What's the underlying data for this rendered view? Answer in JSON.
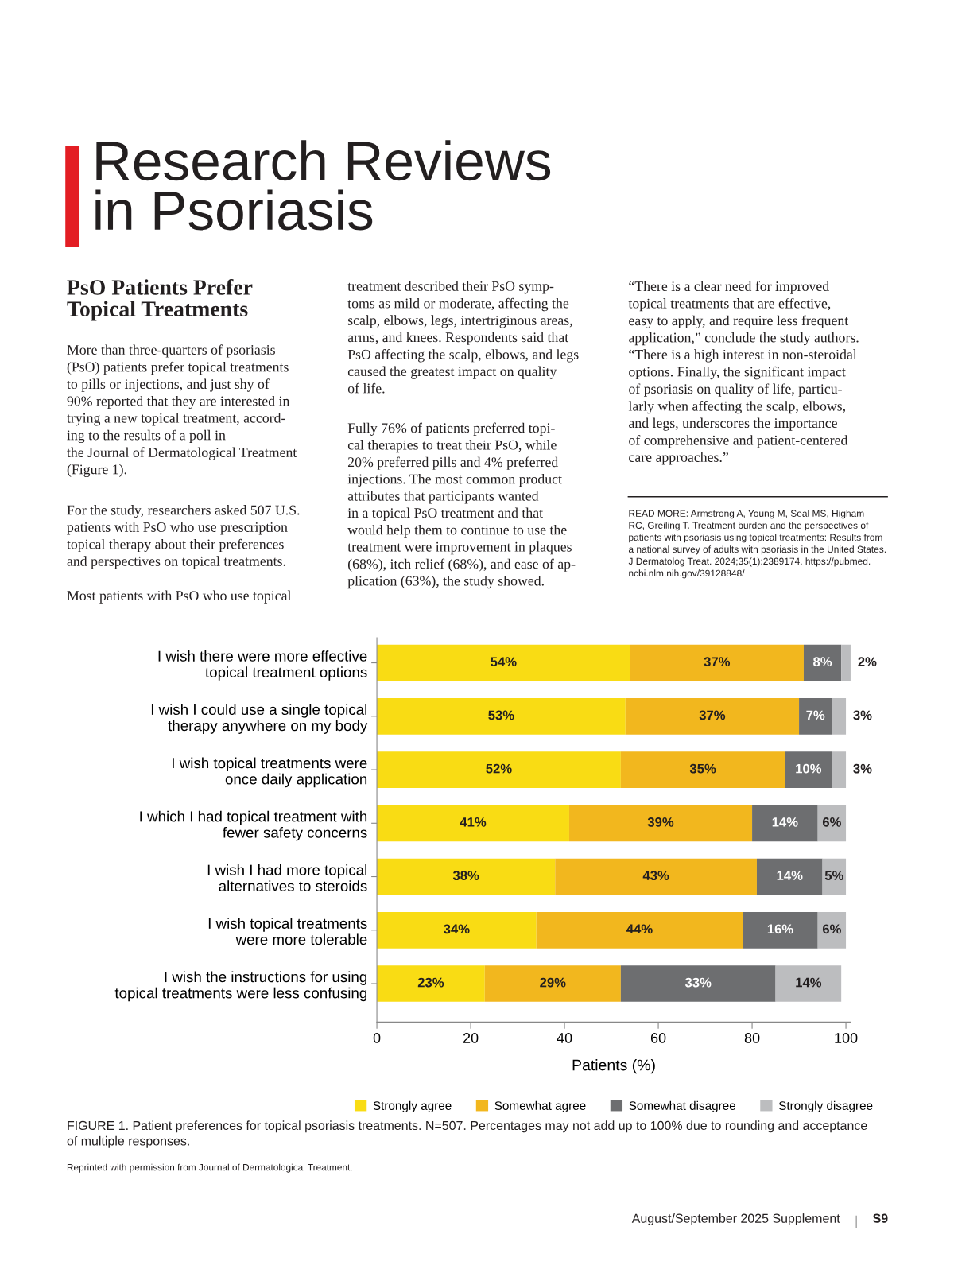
{
  "chart_data": {
    "type": "bar",
    "orientation": "horizontal",
    "stacked": true,
    "title": "Research Reviews\nin Psoriasis",
    "subtitle": "PsO Patients Prefer\nTopical Treatments",
    "categories": [
      "I wish there were more effective\ntopical treatment options",
      "I wish I could use a single topical\ntherapy anywhere on my body",
      "I wish topical treatments were\nonce daily application",
      "I which I had topical treatment with\nfewer safety concerns",
      "I wish I had more topical\nalternatives to steroids",
      "I wish topical treatments\nwere more tolerable",
      "I wish the instructions for using\ntopical treatments were less confusing"
    ],
    "series": [
      {
        "name": "Strongly agree",
        "color": "#f9dc14",
        "values": [
          54,
          53,
          52,
          41,
          38,
          34,
          23
        ],
        "value_labels": [
          "54%",
          "53%",
          "52%",
          "41%",
          "38%",
          "34%",
          "23%"
        ]
      },
      {
        "name": "Somewhat agree",
        "color": "#f2b71e",
        "values": [
          37,
          37,
          35,
          39,
          43,
          44,
          29
        ],
        "value_labels": [
          "37%",
          "37%",
          "35%",
          "39%",
          "43%",
          "44%",
          "29%"
        ]
      },
      {
        "name": "Somewhat disagree",
        "color": "#6d6e70",
        "values": [
          8,
          7,
          10,
          14,
          14,
          16,
          33
        ],
        "value_labels": [
          "8%",
          "7%",
          "10%",
          "14%",
          "14%",
          "16%",
          "33%"
        ]
      },
      {
        "name": "Strongly disagree",
        "color": "#bcbdbf",
        "values": [
          2,
          3,
          3,
          6,
          5,
          6,
          14
        ],
        "value_labels": [
          "2%",
          "3%",
          "3%",
          "6%",
          "5%",
          "6%",
          "14%"
        ]
      }
    ],
    "xlabel": "Patients (%)",
    "xlim": [
      0,
      101
    ],
    "xticks": [
      0,
      20,
      40,
      60,
      80,
      100
    ],
    "grid": false,
    "legend": "bottom",
    "annotations": [
      "FIGURE 1. Patient preferences for topical psoriasis treatments. N=507. Percentages may not add up to 100% due to rounding and acceptance\nof multiple responses.",
      "Reprinted with permission from Journal of Dermatological Treatment.",
      "More than three-quarters of psoriasis\n(PsO) patients prefer topical treatments\nto pills or injections, and just shy of\n90% reported that they are interested in\ntrying a new topical treatment, accord-\ning to the results of a poll in\nthe Journal of Dermatological Treatment\n(Figure 1).",
      "For the study, researchers asked 507 U.S.\npatients with PsO who use prescription\ntopical therapy about their preferences\nand perspectives on topical treatments.",
      "Most patients with PsO who use topical",
      "treatment described their PsO symp-\ntoms as mild or moderate, affecting the\nscalp, elbows, legs, intertriginous areas,\narms, and knees. Respondents said that\nPsO affecting the scalp, elbows, and legs\ncaused the greatest impact on quality\nof life.",
      "Fully 76% of patients preferred topi-\ncal therapies to treat their PsO, while\n20% preferred pills and 4% preferred\ninjections. The most common product\nattributes that participants wanted\nin a topical PsO treatment and that\nwould help them to continue to use the\ntreatment were improvement in plaques\n(68%), itch relief (68%), and ease of ap-\nplication (63%), the study showed.",
      "“There is a clear need for improved\ntopical treatments that are effective,\neasy to apply, and require less frequent\napplication,” conclude the study authors.\n“There is a high interest in non-steroidal\noptions. Finally, the significant impact\nof psoriasis on quality of life, particu-\nlarly when affecting the scalp, elbows,\nand legs, underscores the importance\nof comprehensive and patient-centered\ncare approaches.”",
      "READ MORE: Armstrong A, Young M, Seal MS, Higham\nRC, Greiling T. Treatment burden and the perspectives of\npatients with psoriasis using topical treatments: Results from\na national survey of adults with psoriasis in the United States.\nJ Dermatolog Treat. 2024;35(1):2389174. https://pubmed.\nncbi.nlm.nih.gov/39128848/",
      "August/September 2025 Supplement",
      "S9"
    ]
  }
}
